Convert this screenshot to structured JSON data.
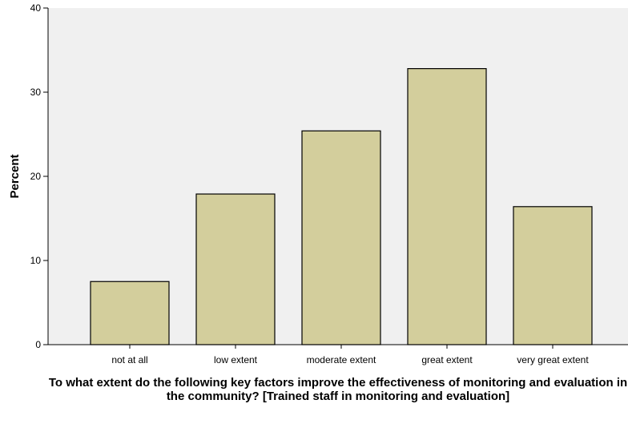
{
  "chart_data": {
    "type": "bar",
    "categories": [
      "not at all",
      "low extent",
      "moderate extent",
      "great extent",
      "very great extent"
    ],
    "values": [
      7.5,
      17.9,
      25.4,
      32.8,
      16.4
    ],
    "title": "",
    "xlabel": "To what extent do the following key factors improve the effectiveness of monitoring and evaluation in the community? [Trained staff in monitoring and evaluation]",
    "ylabel": "Percent",
    "ylim": [
      0,
      40
    ],
    "yticks": [
      0,
      10,
      20,
      30,
      40
    ],
    "grid": false,
    "legend": "none",
    "colors": {
      "bar_fill": "#d3ce9c",
      "bar_stroke": "#000000",
      "plot_bg": "#f0f0f0"
    }
  }
}
